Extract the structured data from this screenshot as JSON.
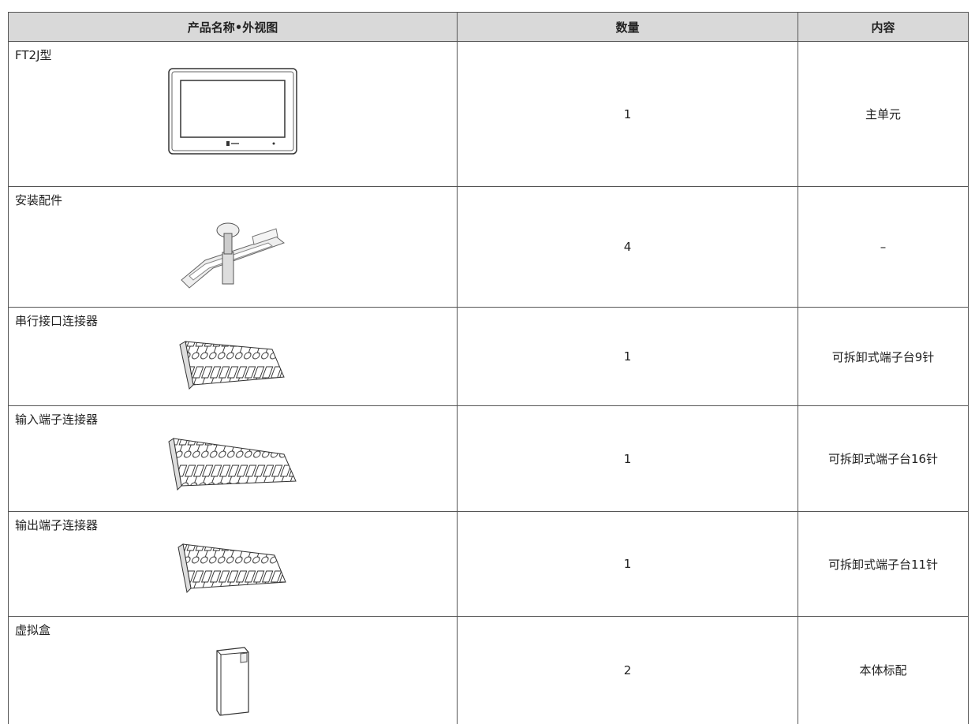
{
  "table": {
    "header": [
      "产品名称•外视图",
      "数量",
      "内容"
    ],
    "rows": [
      [
        "FT2J型",
        "1",
        "主单元"
      ],
      [
        "安装配件",
        "4",
        "–"
      ],
      [
        "串行接口连接器",
        "1",
        "可拆卸式端子台9针"
      ],
      [
        "输入端子连接器",
        "1",
        "可拆卸式端子台16针"
      ],
      [
        "输出端子连接器",
        "1",
        "可拆卸式端子台11针"
      ],
      [
        "虚拟盒",
        "2",
        "本体标配"
      ]
    ]
  }
}
